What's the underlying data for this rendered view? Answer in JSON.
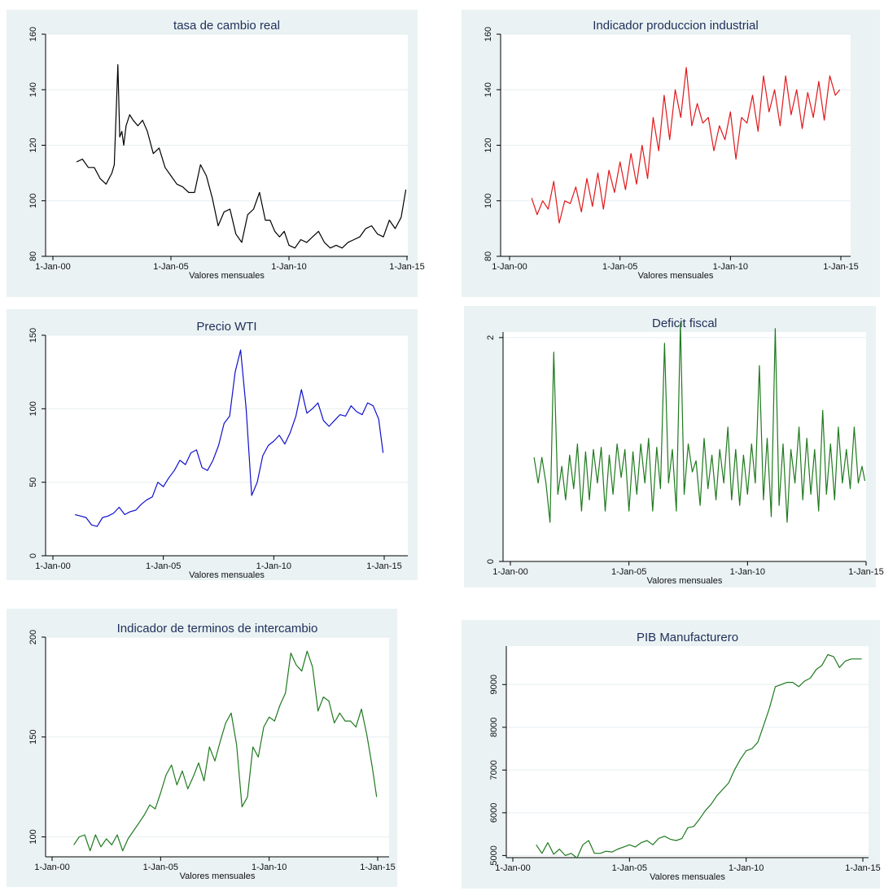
{
  "charts": [
    {
      "id": "tasa",
      "type": "line",
      "title": "tasa de cambio real",
      "xlabel": "Valores mensuales",
      "ylabel": "",
      "color": "#000000",
      "xlim": [
        2000,
        2015
      ],
      "xticks": [
        2000,
        2005,
        2010,
        2015
      ],
      "xtick_labels": [
        "1-Jan-00",
        "1-Jan-05",
        "1-Jan-10",
        "1-Jan-15"
      ],
      "ylim": [
        80,
        160
      ],
      "yticks": [
        80,
        100,
        120,
        140,
        160
      ],
      "ygrid": true,
      "x": [
        2001.0,
        2001.25,
        2001.5,
        2001.75,
        2002.0,
        2002.25,
        2002.5,
        2002.6,
        2002.75,
        2002.83,
        2002.92,
        2003.0,
        2003.1,
        2003.25,
        2003.4,
        2003.6,
        2003.8,
        2004.0,
        2004.25,
        2004.5,
        2004.75,
        2005.0,
        2005.25,
        2005.5,
        2005.75,
        2006.0,
        2006.25,
        2006.5,
        2006.75,
        2007.0,
        2007.25,
        2007.5,
        2007.75,
        2008.0,
        2008.25,
        2008.5,
        2008.75,
        2009.0,
        2009.2,
        2009.4,
        2009.6,
        2009.8,
        2010.0,
        2010.25,
        2010.5,
        2010.75,
        2011.0,
        2011.25,
        2011.5,
        2011.75,
        2012.0,
        2012.25,
        2012.5,
        2012.75,
        2013.0,
        2013.25,
        2013.5,
        2013.75,
        2014.0,
        2014.25,
        2014.5,
        2014.75,
        2014.95
      ],
      "y": [
        114,
        115,
        112,
        112,
        108,
        106,
        110,
        113,
        149,
        123,
        125,
        120,
        127,
        131,
        129,
        127,
        129,
        125,
        117,
        119,
        112,
        109,
        106,
        105,
        103,
        103,
        113,
        109,
        101,
        91,
        96,
        97,
        88,
        85,
        95,
        97,
        103,
        93,
        93,
        89,
        87,
        89,
        84,
        83,
        86,
        85,
        87,
        89,
        85,
        83,
        84,
        83,
        85,
        86,
        87,
        90,
        91,
        88,
        87,
        93,
        90,
        94,
        104
      ]
    },
    {
      "id": "ipi",
      "type": "line",
      "title": "Indicador produccion industrial",
      "xlabel": "Valores mensuales",
      "ylabel": "",
      "color": "#e0181b",
      "xlim": [
        2000,
        2015
      ],
      "xticks": [
        2000,
        2005,
        2010,
        2015
      ],
      "xtick_labels": [
        "1-Jan-00",
        "1-Jan-05",
        "1-Jan-10",
        "1-Jan-15"
      ],
      "ylim": [
        80,
        160
      ],
      "yticks": [
        80,
        100,
        120,
        140,
        160
      ],
      "ygrid": true,
      "x": [
        2001.0,
        2001.25,
        2001.5,
        2001.75,
        2002.0,
        2002.25,
        2002.5,
        2002.75,
        2003.0,
        2003.25,
        2003.5,
        2003.75,
        2004.0,
        2004.25,
        2004.5,
        2004.75,
        2005.0,
        2005.25,
        2005.5,
        2005.75,
        2006.0,
        2006.25,
        2006.5,
        2006.75,
        2007.0,
        2007.25,
        2007.5,
        2007.75,
        2008.0,
        2008.25,
        2008.5,
        2008.75,
        2009.0,
        2009.25,
        2009.5,
        2009.75,
        2010.0,
        2010.25,
        2010.5,
        2010.75,
        2011.0,
        2011.25,
        2011.5,
        2011.75,
        2012.0,
        2012.25,
        2012.5,
        2012.75,
        2013.0,
        2013.25,
        2013.5,
        2013.75,
        2014.0,
        2014.25,
        2014.5,
        2014.75,
        2014.95
      ],
      "y": [
        101,
        95,
        100,
        97,
        107,
        92,
        100,
        99,
        105,
        96,
        108,
        98,
        110,
        97,
        111,
        103,
        114,
        104,
        117,
        106,
        120,
        108,
        130,
        118,
        138,
        122,
        140,
        130,
        148,
        127,
        135,
        128,
        130,
        118,
        127,
        122,
        132,
        115,
        130,
        128,
        138,
        125,
        145,
        132,
        140,
        127,
        145,
        131,
        140,
        126,
        139,
        130,
        143,
        129,
        145,
        138,
        140
      ]
    },
    {
      "id": "wti",
      "type": "line",
      "title": "Precio WTI",
      "xlabel": "Valores mensuales",
      "ylabel": "",
      "color": "#1010cc",
      "xlim": [
        2000,
        2015
      ],
      "xticks": [
        2000,
        2005,
        2010,
        2015
      ],
      "xtick_labels": [
        "1-Jan-00",
        "1-Jan-05",
        "1-Jan-10",
        "1-Jan-15"
      ],
      "ylim": [
        0,
        150
      ],
      "yticks": [
        0,
        50,
        100,
        150
      ],
      "ygrid": true,
      "x": [
        2001.0,
        2001.25,
        2001.5,
        2001.75,
        2002.0,
        2002.25,
        2002.5,
        2002.75,
        2003.0,
        2003.25,
        2003.5,
        2003.75,
        2004.0,
        2004.25,
        2004.5,
        2004.75,
        2005.0,
        2005.25,
        2005.5,
        2005.75,
        2006.0,
        2006.25,
        2006.5,
        2006.75,
        2007.0,
        2007.25,
        2007.5,
        2007.75,
        2008.0,
        2008.25,
        2008.5,
        2008.75,
        2009.0,
        2009.25,
        2009.5,
        2009.75,
        2010.0,
        2010.25,
        2010.5,
        2010.75,
        2011.0,
        2011.25,
        2011.5,
        2011.75,
        2012.0,
        2012.25,
        2012.5,
        2012.75,
        2013.0,
        2013.25,
        2013.5,
        2013.75,
        2014.0,
        2014.25,
        2014.5,
        2014.75,
        2014.95
      ],
      "y": [
        28,
        27,
        26,
        21,
        20,
        26,
        27,
        29,
        33,
        28,
        30,
        31,
        35,
        38,
        40,
        50,
        47,
        53,
        58,
        65,
        62,
        70,
        72,
        60,
        58,
        65,
        75,
        90,
        95,
        125,
        140,
        100,
        41,
        50,
        68,
        75,
        78,
        82,
        76,
        84,
        95,
        113,
        97,
        100,
        104,
        92,
        88,
        92,
        96,
        95,
        102,
        98,
        96,
        104,
        102,
        93,
        70
      ]
    },
    {
      "id": "def",
      "type": "line",
      "title": "Deficit fiscal",
      "xlabel": "Valores mensuales",
      "ylabel": "",
      "color": "#1f7a1f",
      "xlim": [
        2000,
        2015
      ],
      "xticks": [
        2000,
        2005,
        2010,
        2015
      ],
      "xtick_labels": [
        "1-Jan-00",
        "1-Jan-05",
        "1-Jan-10",
        "1-Jan-15"
      ],
      "ylim": [
        0,
        2.05
      ],
      "yticks": [
        0,
        2
      ],
      "ygrid": true,
      "x": [
        2001.0,
        2001.17,
        2001.33,
        2001.5,
        2001.67,
        2001.83,
        2002.0,
        2002.17,
        2002.33,
        2002.5,
        2002.67,
        2002.83,
        2003.0,
        2003.17,
        2003.33,
        2003.5,
        2003.67,
        2003.83,
        2004.0,
        2004.17,
        2004.33,
        2004.5,
        2004.67,
        2004.83,
        2005.0,
        2005.17,
        2005.33,
        2005.5,
        2005.67,
        2005.83,
        2006.0,
        2006.17,
        2006.33,
        2006.5,
        2006.67,
        2006.83,
        2007.0,
        2007.17,
        2007.33,
        2007.5,
        2007.67,
        2007.83,
        2008.0,
        2008.17,
        2008.33,
        2008.5,
        2008.67,
        2008.83,
        2009.0,
        2009.17,
        2009.33,
        2009.5,
        2009.67,
        2009.83,
        2010.0,
        2010.17,
        2010.33,
        2010.5,
        2010.67,
        2010.83,
        2011.0,
        2011.17,
        2011.33,
        2011.5,
        2011.67,
        2011.83,
        2012.0,
        2012.17,
        2012.33,
        2012.5,
        2012.67,
        2012.83,
        2013.0,
        2013.17,
        2013.33,
        2013.5,
        2013.67,
        2013.83,
        2014.0,
        2014.17,
        2014.33,
        2014.5,
        2014.67,
        2014.83,
        2014.95
      ],
      "y": [
        0.93,
        0.7,
        0.93,
        0.7,
        0.35,
        1.87,
        0.6,
        0.85,
        0.55,
        0.95,
        0.65,
        1.05,
        0.45,
        0.98,
        0.55,
        1.0,
        0.7,
        1.02,
        0.45,
        0.95,
        0.6,
        1.05,
        0.75,
        1.0,
        0.45,
        0.98,
        0.6,
        1.05,
        0.7,
        1.1,
        0.45,
        1.02,
        0.65,
        1.95,
        0.7,
        1.0,
        0.45,
        2.13,
        0.6,
        1.05,
        0.8,
        0.9,
        0.5,
        1.1,
        0.65,
        0.95,
        0.55,
        1.0,
        0.7,
        1.2,
        0.55,
        1.0,
        0.5,
        0.95,
        0.6,
        1.05,
        0.7,
        1.75,
        0.55,
        1.1,
        0.4,
        2.08,
        0.5,
        1.05,
        0.35,
        1.0,
        0.7,
        1.2,
        0.55,
        1.1,
        0.6,
        1.0,
        0.45,
        1.35,
        0.6,
        1.05,
        0.55,
        1.2,
        0.7,
        1.0,
        0.65,
        1.2,
        0.7,
        0.85,
        0.72
      ]
    },
    {
      "id": "tdi",
      "type": "line",
      "title": "Indicador de terminos de intercambio",
      "xlabel": "Valores mensuales",
      "ylabel": "",
      "color": "#1f7a1f",
      "xlim": [
        2000,
        2015
      ],
      "xticks": [
        2000,
        2005,
        2010,
        2015
      ],
      "xtick_labels": [
        "1-Jan-00",
        "1-Jan-05",
        "1-Jan-10",
        "1-Jan-15"
      ],
      "ylim": [
        90,
        200
      ],
      "yticks": [
        100,
        150,
        200
      ],
      "ygrid": true,
      "x": [
        2001.0,
        2001.25,
        2001.5,
        2001.75,
        2002.0,
        2002.25,
        2002.5,
        2002.75,
        2003.0,
        2003.25,
        2003.5,
        2003.75,
        2004.0,
        2004.25,
        2004.5,
        2004.75,
        2005.0,
        2005.25,
        2005.5,
        2005.75,
        2006.0,
        2006.25,
        2006.5,
        2006.75,
        2007.0,
        2007.25,
        2007.5,
        2007.75,
        2008.0,
        2008.25,
        2008.5,
        2008.75,
        2009.0,
        2009.25,
        2009.5,
        2009.75,
        2010.0,
        2010.25,
        2010.5,
        2010.75,
        2011.0,
        2011.25,
        2011.5,
        2011.75,
        2012.0,
        2012.25,
        2012.5,
        2012.75,
        2013.0,
        2013.25,
        2013.5,
        2013.75,
        2014.0,
        2014.25,
        2014.5,
        2014.75,
        2014.95
      ],
      "y": [
        96,
        100,
        101,
        93,
        101,
        95,
        99,
        96,
        101,
        93,
        99,
        103,
        107,
        111,
        116,
        114,
        122,
        131,
        136,
        126,
        133,
        124,
        130,
        137,
        128,
        145,
        138,
        148,
        157,
        162,
        146,
        115,
        120,
        145,
        140,
        155,
        160,
        158,
        166,
        172,
        192,
        186,
        183,
        193,
        185,
        163,
        170,
        168,
        157,
        162,
        158,
        158,
        155,
        164,
        151,
        135,
        120
      ]
    },
    {
      "id": "pib",
      "type": "line",
      "title": "PIB Manufacturero",
      "xlabel": "Valores mensuales",
      "ylabel": "",
      "color": "#1f7a1f",
      "xlim": [
        2000,
        2015
      ],
      "xticks": [
        2000,
        2005,
        2010,
        2015
      ],
      "xtick_labels": [
        "1-Jan-00",
        "1-Jan-05",
        "1-Jan-10",
        "1-Jan-15"
      ],
      "ylim": [
        4950,
        9900
      ],
      "yticks": [
        5000,
        6000,
        7000,
        8000,
        9000
      ],
      "ygrid": true,
      "x": [
        2001.0,
        2001.25,
        2001.5,
        2001.75,
        2002.0,
        2002.25,
        2002.5,
        2002.75,
        2003.0,
        2003.25,
        2003.5,
        2003.75,
        2004.0,
        2004.25,
        2004.5,
        2004.75,
        2005.0,
        2005.25,
        2005.5,
        2005.75,
        2006.0,
        2006.25,
        2006.5,
        2006.75,
        2007.0,
        2007.25,
        2007.5,
        2007.75,
        2008.0,
        2008.25,
        2008.5,
        2008.75,
        2009.0,
        2009.25,
        2009.5,
        2009.75,
        2010.0,
        2010.25,
        2010.5,
        2010.75,
        2011.0,
        2011.25,
        2011.5,
        2011.75,
        2012.0,
        2012.25,
        2012.5,
        2012.75,
        2013.0,
        2013.25,
        2013.5,
        2013.75,
        2014.0,
        2014.25,
        2014.5,
        2014.75,
        2014.95
      ],
      "y": [
        5250,
        5050,
        5300,
        5030,
        5150,
        5000,
        5050,
        4940,
        5250,
        5350,
        5050,
        5050,
        5100,
        5080,
        5150,
        5200,
        5250,
        5200,
        5300,
        5350,
        5250,
        5400,
        5450,
        5380,
        5350,
        5400,
        5650,
        5680,
        5850,
        6050,
        6200,
        6400,
        6550,
        6700,
        7000,
        7250,
        7450,
        7500,
        7650,
        8050,
        8450,
        8950,
        9000,
        9050,
        9050,
        8950,
        9080,
        9150,
        9350,
        9450,
        9700,
        9650,
        9400,
        9550,
        9600,
        9600,
        9600
      ]
    }
  ]
}
